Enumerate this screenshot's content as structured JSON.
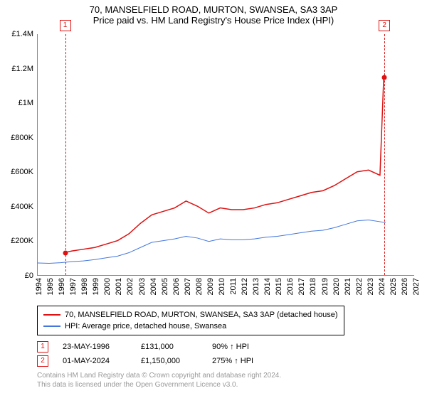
{
  "title1": "70, MANSELFIELD ROAD, MURTON, SWANSEA, SA3 3AP",
  "title2": "Price paid vs. HM Land Registry's House Price Index (HPI)",
  "chart": {
    "type": "line",
    "x_years": [
      1994,
      1995,
      1996,
      1997,
      1998,
      1999,
      2000,
      2001,
      2002,
      2003,
      2004,
      2005,
      2006,
      2007,
      2008,
      2009,
      2010,
      2011,
      2012,
      2013,
      2014,
      2015,
      2016,
      2017,
      2018,
      2019,
      2020,
      2021,
      2022,
      2023,
      2024,
      2025,
      2026,
      2027
    ],
    "xlim": [
      1994,
      2027
    ],
    "ylim": [
      0,
      1400000
    ],
    "ytick_step": 200000,
    "ytick_labels": [
      "£0",
      "£200K",
      "£400K",
      "£600K",
      "£800K",
      "£1M",
      "£1.2M",
      "£1.4M"
    ],
    "series": [
      {
        "name": "70, MANSELFIELD ROAD, MURTON, SWANSEA, SA3 3AP (detached house)",
        "color": "#dd1111",
        "line_width": 1.5,
        "data": [
          [
            1996.4,
            131000
          ],
          [
            1997,
            140000
          ],
          [
            1998,
            150000
          ],
          [
            1999,
            160000
          ],
          [
            2000,
            180000
          ],
          [
            2001,
            200000
          ],
          [
            2002,
            240000
          ],
          [
            2003,
            300000
          ],
          [
            2004,
            350000
          ],
          [
            2005,
            370000
          ],
          [
            2006,
            390000
          ],
          [
            2007,
            430000
          ],
          [
            2008,
            400000
          ],
          [
            2009,
            360000
          ],
          [
            2010,
            390000
          ],
          [
            2011,
            380000
          ],
          [
            2012,
            380000
          ],
          [
            2013,
            390000
          ],
          [
            2014,
            410000
          ],
          [
            2015,
            420000
          ],
          [
            2016,
            440000
          ],
          [
            2017,
            460000
          ],
          [
            2018,
            480000
          ],
          [
            2019,
            490000
          ],
          [
            2020,
            520000
          ],
          [
            2021,
            560000
          ],
          [
            2022,
            600000
          ],
          [
            2023,
            610000
          ],
          [
            2024,
            580000
          ],
          [
            2024.33,
            1150000
          ]
        ]
      },
      {
        "name": "HPI: Average price, detached house, Swansea",
        "color": "#4477dd",
        "line_width": 1,
        "data": [
          [
            1994,
            70000
          ],
          [
            1995,
            68000
          ],
          [
            1996,
            72000
          ],
          [
            1997,
            78000
          ],
          [
            1998,
            82000
          ],
          [
            1999,
            90000
          ],
          [
            2000,
            100000
          ],
          [
            2001,
            110000
          ],
          [
            2002,
            130000
          ],
          [
            2003,
            160000
          ],
          [
            2004,
            190000
          ],
          [
            2005,
            200000
          ],
          [
            2006,
            210000
          ],
          [
            2007,
            225000
          ],
          [
            2008,
            215000
          ],
          [
            2009,
            195000
          ],
          [
            2010,
            210000
          ],
          [
            2011,
            205000
          ],
          [
            2012,
            205000
          ],
          [
            2013,
            210000
          ],
          [
            2014,
            220000
          ],
          [
            2015,
            225000
          ],
          [
            2016,
            235000
          ],
          [
            2017,
            245000
          ],
          [
            2018,
            255000
          ],
          [
            2019,
            260000
          ],
          [
            2020,
            275000
          ],
          [
            2021,
            295000
          ],
          [
            2022,
            315000
          ],
          [
            2023,
            320000
          ],
          [
            2024,
            310000
          ],
          [
            2024.5,
            305000
          ]
        ]
      }
    ],
    "markers": [
      {
        "n": "1",
        "year": 1996.4,
        "color": "#dd1111"
      },
      {
        "n": "2",
        "year": 2024.33,
        "color": "#dd1111"
      }
    ],
    "sale_points": [
      {
        "year": 1996.4,
        "value": 131000,
        "color": "#dd1111"
      },
      {
        "year": 2024.33,
        "value": 1150000,
        "color": "#dd1111"
      }
    ],
    "background_color": "#ffffff"
  },
  "legend": [
    {
      "color": "#dd1111",
      "label": "70, MANSELFIELD ROAD, MURTON, SWANSEA, SA3 3AP (detached house)"
    },
    {
      "color": "#4477dd",
      "label": "HPI: Average price, detached house, Swansea"
    }
  ],
  "sales": [
    {
      "n": "1",
      "color": "#dd1111",
      "date": "23-MAY-1996",
      "price": "£131,000",
      "pct": "90% ↑ HPI"
    },
    {
      "n": "2",
      "color": "#dd1111",
      "date": "01-MAY-2024",
      "price": "£1,150,000",
      "pct": "275% ↑ HPI"
    }
  ],
  "footer1": "Contains HM Land Registry data © Crown copyright and database right 2024.",
  "footer2": "This data is licensed under the Open Government Licence v3.0."
}
